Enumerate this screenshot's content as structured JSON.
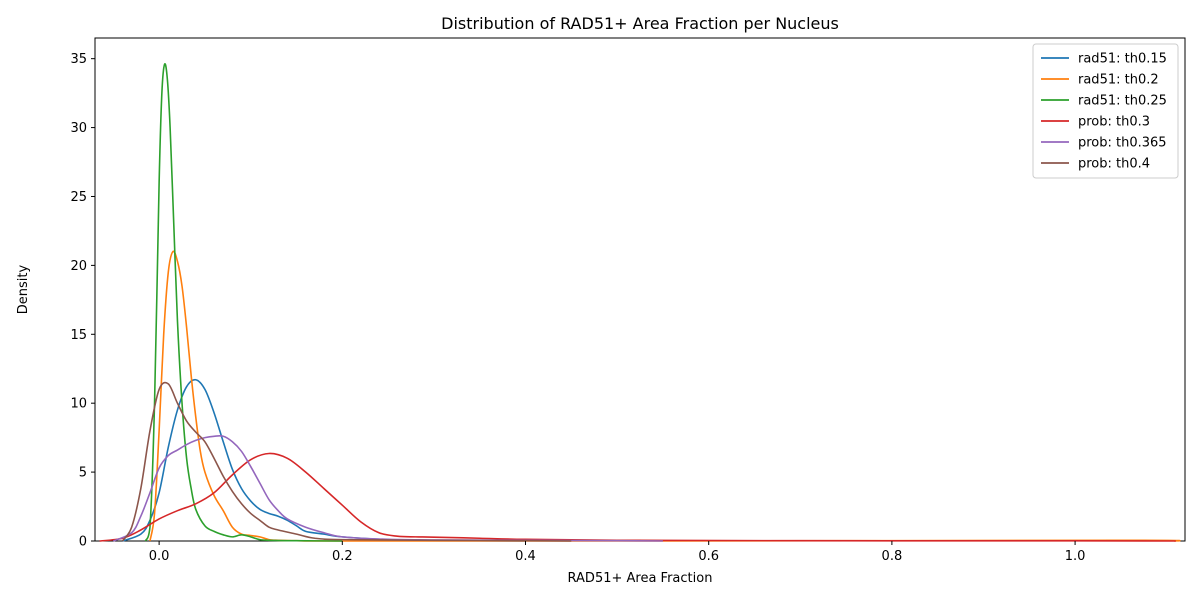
{
  "chart_data": {
    "type": "line",
    "title": "Distribution of RAD51+ Area Fraction per Nucleus",
    "xlabel": "RAD51+ Area Fraction",
    "ylabel": "Density",
    "xlim": [
      -0.07,
      1.12
    ],
    "ylim": [
      0,
      36.5
    ],
    "xticks": [
      0.0,
      0.2,
      0.4,
      0.6,
      0.8,
      1.0
    ],
    "xtick_labels": [
      "0.0",
      "0.2",
      "0.4",
      "0.6",
      "0.8",
      "1.0"
    ],
    "yticks": [
      0,
      5,
      10,
      15,
      20,
      25,
      30,
      35
    ],
    "ytick_labels": [
      "0",
      "5",
      "10",
      "15",
      "20",
      "25",
      "30",
      "35"
    ],
    "grid": false,
    "legend_position": "top-right",
    "series": [
      {
        "name": "rad51: th0.15",
        "color": "#1f77b4",
        "x": [
          -0.04,
          -0.02,
          -0.01,
          0.0,
          0.01,
          0.02,
          0.03,
          0.04,
          0.05,
          0.06,
          0.07,
          0.08,
          0.09,
          0.1,
          0.11,
          0.12,
          0.13,
          0.14,
          0.15,
          0.16,
          0.18,
          0.2,
          0.25,
          0.3,
          0.4
        ],
        "y": [
          0.0,
          0.5,
          1.5,
          3.5,
          6.8,
          9.5,
          11.2,
          11.7,
          11.0,
          9.3,
          7.2,
          5.2,
          3.8,
          2.9,
          2.3,
          2.0,
          1.8,
          1.5,
          1.1,
          0.7,
          0.5,
          0.3,
          0.1,
          0.05,
          0.0
        ]
      },
      {
        "name": "rad51: th0.2",
        "color": "#ff7f0e",
        "x": [
          -0.01,
          -0.005,
          0.0,
          0.005,
          0.01,
          0.015,
          0.02,
          0.025,
          0.03,
          0.035,
          0.04,
          0.045,
          0.05,
          0.06,
          0.07,
          0.08,
          0.09,
          0.1,
          0.11,
          0.12,
          0.13,
          0.15,
          0.2,
          0.5,
          1.05,
          1.11
        ],
        "y": [
          0.0,
          2.0,
          8.0,
          15.0,
          19.5,
          21.0,
          20.3,
          18.5,
          15.5,
          12.0,
          9.0,
          6.5,
          5.0,
          3.3,
          2.2,
          1.0,
          0.5,
          0.4,
          0.3,
          0.1,
          0.05,
          0.02,
          0.0,
          0.0,
          0.05,
          0.0
        ]
      },
      {
        "name": "rad51: th0.25",
        "color": "#2ca02c",
        "x": [
          -0.015,
          -0.01,
          -0.005,
          0.0,
          0.003,
          0.006,
          0.009,
          0.012,
          0.016,
          0.02,
          0.025,
          0.03,
          0.035,
          0.04,
          0.05,
          0.06,
          0.07,
          0.08,
          0.09,
          0.1,
          0.11,
          0.12,
          0.15,
          0.2
        ],
        "y": [
          0.0,
          1.0,
          10.0,
          26.0,
          32.5,
          34.6,
          33.5,
          30.0,
          23.0,
          16.0,
          10.0,
          6.0,
          3.8,
          2.3,
          1.1,
          0.7,
          0.45,
          0.3,
          0.45,
          0.3,
          0.1,
          0.05,
          0.02,
          0.0
        ]
      },
      {
        "name": "prob: th0.3",
        "color": "#d62728",
        "x": [
          -0.065,
          -0.04,
          -0.02,
          0.0,
          0.02,
          0.04,
          0.06,
          0.08,
          0.1,
          0.12,
          0.14,
          0.16,
          0.18,
          0.2,
          0.22,
          0.24,
          0.26,
          0.28,
          0.3,
          0.35,
          0.4,
          0.5,
          0.7,
          1.0,
          1.11
        ],
        "y": [
          0.0,
          0.2,
          0.8,
          1.6,
          2.2,
          2.7,
          3.5,
          4.8,
          5.9,
          6.35,
          6.0,
          5.0,
          3.8,
          2.6,
          1.4,
          0.6,
          0.35,
          0.3,
          0.28,
          0.2,
          0.12,
          0.05,
          0.02,
          0.01,
          0.0
        ]
      },
      {
        "name": "prob: th0.365",
        "color": "#9467bd",
        "x": [
          -0.05,
          -0.03,
          -0.02,
          -0.01,
          0.0,
          0.01,
          0.02,
          0.03,
          0.04,
          0.05,
          0.06,
          0.07,
          0.08,
          0.09,
          0.1,
          0.11,
          0.12,
          0.13,
          0.14,
          0.16,
          0.18,
          0.2,
          0.25,
          0.3,
          0.4,
          0.5,
          0.55
        ],
        "y": [
          0.0,
          0.6,
          1.8,
          3.5,
          5.3,
          6.2,
          6.6,
          7.0,
          7.3,
          7.5,
          7.6,
          7.6,
          7.2,
          6.5,
          5.4,
          4.2,
          3.0,
          2.2,
          1.6,
          1.0,
          0.6,
          0.3,
          0.12,
          0.08,
          0.05,
          0.02,
          0.0
        ]
      },
      {
        "name": "prob: th0.4",
        "color": "#8c564b",
        "x": [
          -0.04,
          -0.03,
          -0.02,
          -0.01,
          0.0,
          0.01,
          0.02,
          0.03,
          0.04,
          0.05,
          0.06,
          0.07,
          0.08,
          0.09,
          0.1,
          0.11,
          0.12,
          0.13,
          0.15,
          0.17,
          0.2,
          0.3,
          0.4,
          0.45
        ],
        "y": [
          0.0,
          1.0,
          3.8,
          8.0,
          11.0,
          11.4,
          10.0,
          8.7,
          7.9,
          7.2,
          6.0,
          4.7,
          3.6,
          2.7,
          2.0,
          1.5,
          1.0,
          0.8,
          0.5,
          0.2,
          0.1,
          0.05,
          0.02,
          0.0
        ]
      }
    ]
  }
}
